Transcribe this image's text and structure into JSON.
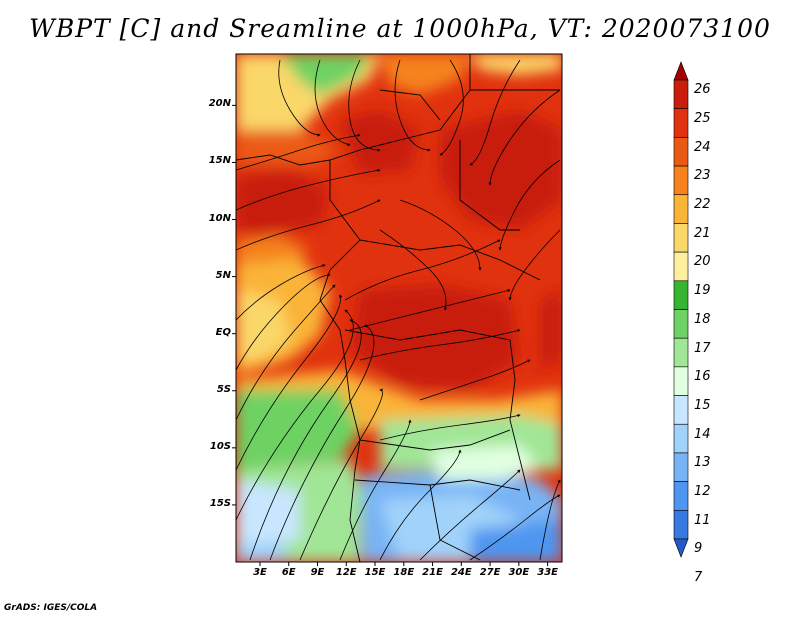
{
  "title": "WBPT [C] and Sreamline at 1000hPa, VT: 2020073100",
  "credit": "GrADS: IGES/COLA",
  "lat_ticks": [
    {
      "label": "20N",
      "value": 20
    },
    {
      "label": "15N",
      "value": 15
    },
    {
      "label": "10N",
      "value": 10
    },
    {
      "label": "5N",
      "value": 5
    },
    {
      "label": "EQ",
      "value": 0
    },
    {
      "label": "5S",
      "value": -5
    },
    {
      "label": "10S",
      "value": -10
    },
    {
      "label": "15S",
      "value": -15
    }
  ],
  "lon_ticks": [
    {
      "label": "3E",
      "value": 3
    },
    {
      "label": "6E",
      "value": 6
    },
    {
      "label": "9E",
      "value": 9
    },
    {
      "label": "12E",
      "value": 12
    },
    {
      "label": "15E",
      "value": 15
    },
    {
      "label": "18E",
      "value": 18
    },
    {
      "label": "21E",
      "value": 21
    },
    {
      "label": "24E",
      "value": 24
    },
    {
      "label": "27E",
      "value": 27
    },
    {
      "label": "30E",
      "value": 30
    },
    {
      "label": "33E",
      "value": 33
    }
  ],
  "extent": {
    "lon": [
      0.5,
      34.5
    ],
    "lat": [
      -20,
      24.5
    ]
  },
  "colorbar": {
    "labels": [
      "26",
      "25",
      "24",
      "23",
      "22",
      "21",
      "20",
      "19",
      "18",
      "17",
      "16",
      "15",
      "14",
      "13",
      "12",
      "11",
      "9",
      "7"
    ],
    "colors": [
      "#a50000",
      "#c81e0a",
      "#e1320f",
      "#eb5a14",
      "#f5821e",
      "#fab437",
      "#fad769",
      "#fff0a0",
      "#37b432",
      "#6ed264",
      "#a0e696",
      "#e1ffe1",
      "#c8e6ff",
      "#a0d2fa",
      "#78b4f5",
      "#5096f0",
      "#3778e1",
      "#235ac8"
    ]
  }
}
